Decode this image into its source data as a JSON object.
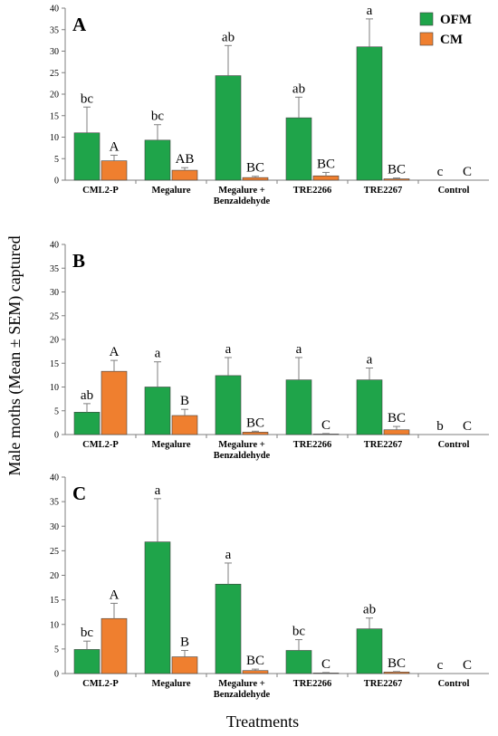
{
  "figure": {
    "ylabel": "Male moths (Mean ± SEM) captured",
    "xlabel": "Treatments",
    "legend": [
      {
        "name": "OFM",
        "color": "#1fa44a"
      },
      {
        "name": "CM",
        "color": "#ef7f2f"
      }
    ]
  },
  "chart_data": [
    {
      "type": "bar",
      "panel": "A",
      "categories": [
        "CML2-P",
        "Megalure",
        "Megalure + Benzaldehyde",
        "TRE2266",
        "TRE2267",
        "Control"
      ],
      "ylim": [
        0,
        40
      ],
      "yticks": [
        0,
        5,
        10,
        15,
        20,
        25,
        30,
        35,
        40
      ],
      "series": [
        {
          "name": "OFM",
          "color": "#1fa44a",
          "values": [
            11.0,
            9.3,
            24.3,
            14.5,
            31.0,
            0
          ],
          "errors": [
            6.0,
            3.6,
            7.0,
            4.8,
            6.5,
            0
          ],
          "labels": [
            "bc",
            "bc",
            "ab",
            "ab",
            "a",
            "c"
          ]
        },
        {
          "name": "CM",
          "color": "#ef7f2f",
          "values": [
            4.5,
            2.3,
            0.6,
            1.0,
            0.3,
            0
          ],
          "errors": [
            1.3,
            0.6,
            0.3,
            0.8,
            0.2,
            0
          ],
          "labels": [
            "A",
            "AB",
            "BC",
            "BC",
            "BC",
            "C"
          ]
        }
      ],
      "legend": "top-right"
    },
    {
      "type": "bar",
      "panel": "B",
      "categories": [
        "CML2-P",
        "Megalure",
        "Megalure + Benzaldehyde",
        "TRE2266",
        "TRE2267",
        "Control"
      ],
      "ylim": [
        0,
        40
      ],
      "yticks": [
        0,
        5,
        10,
        15,
        20,
        25,
        30,
        35,
        40
      ],
      "series": [
        {
          "name": "OFM",
          "color": "#1fa44a",
          "values": [
            4.7,
            10.0,
            12.4,
            11.5,
            11.5,
            0
          ],
          "errors": [
            1.8,
            5.3,
            3.8,
            4.7,
            2.5,
            0
          ],
          "labels": [
            "ab",
            "a",
            "a",
            "a",
            "a",
            "b"
          ]
        },
        {
          "name": "CM",
          "color": "#ef7f2f",
          "values": [
            13.3,
            4.0,
            0.5,
            0.1,
            1.0,
            0
          ],
          "errors": [
            2.3,
            1.3,
            0.2,
            0.1,
            0.7,
            0
          ],
          "labels": [
            "A",
            "B",
            "BC",
            "C",
            "BC",
            "C"
          ]
        }
      ]
    },
    {
      "type": "bar",
      "panel": "C",
      "categories": [
        "CML2-P",
        "Megalure",
        "Megalure + Benzaldehyde",
        "TRE2266",
        "TRE2267",
        "Control"
      ],
      "ylim": [
        0,
        40
      ],
      "yticks": [
        0,
        5,
        10,
        15,
        20,
        25,
        30,
        35,
        40
      ],
      "series": [
        {
          "name": "OFM",
          "color": "#1fa44a",
          "values": [
            4.9,
            26.8,
            18.2,
            4.7,
            9.1,
            0
          ],
          "errors": [
            1.7,
            8.8,
            4.3,
            2.2,
            2.2,
            0
          ],
          "labels": [
            "bc",
            "a",
            "a",
            "bc",
            "ab",
            "c"
          ]
        },
        {
          "name": "CM",
          "color": "#ef7f2f",
          "values": [
            11.2,
            3.4,
            0.6,
            0.1,
            0.3,
            0
          ],
          "errors": [
            3.1,
            1.3,
            0.3,
            0.1,
            0.1,
            0
          ],
          "labels": [
            "A",
            "B",
            "BC",
            "C",
            "BC",
            "C"
          ]
        }
      ]
    }
  ]
}
